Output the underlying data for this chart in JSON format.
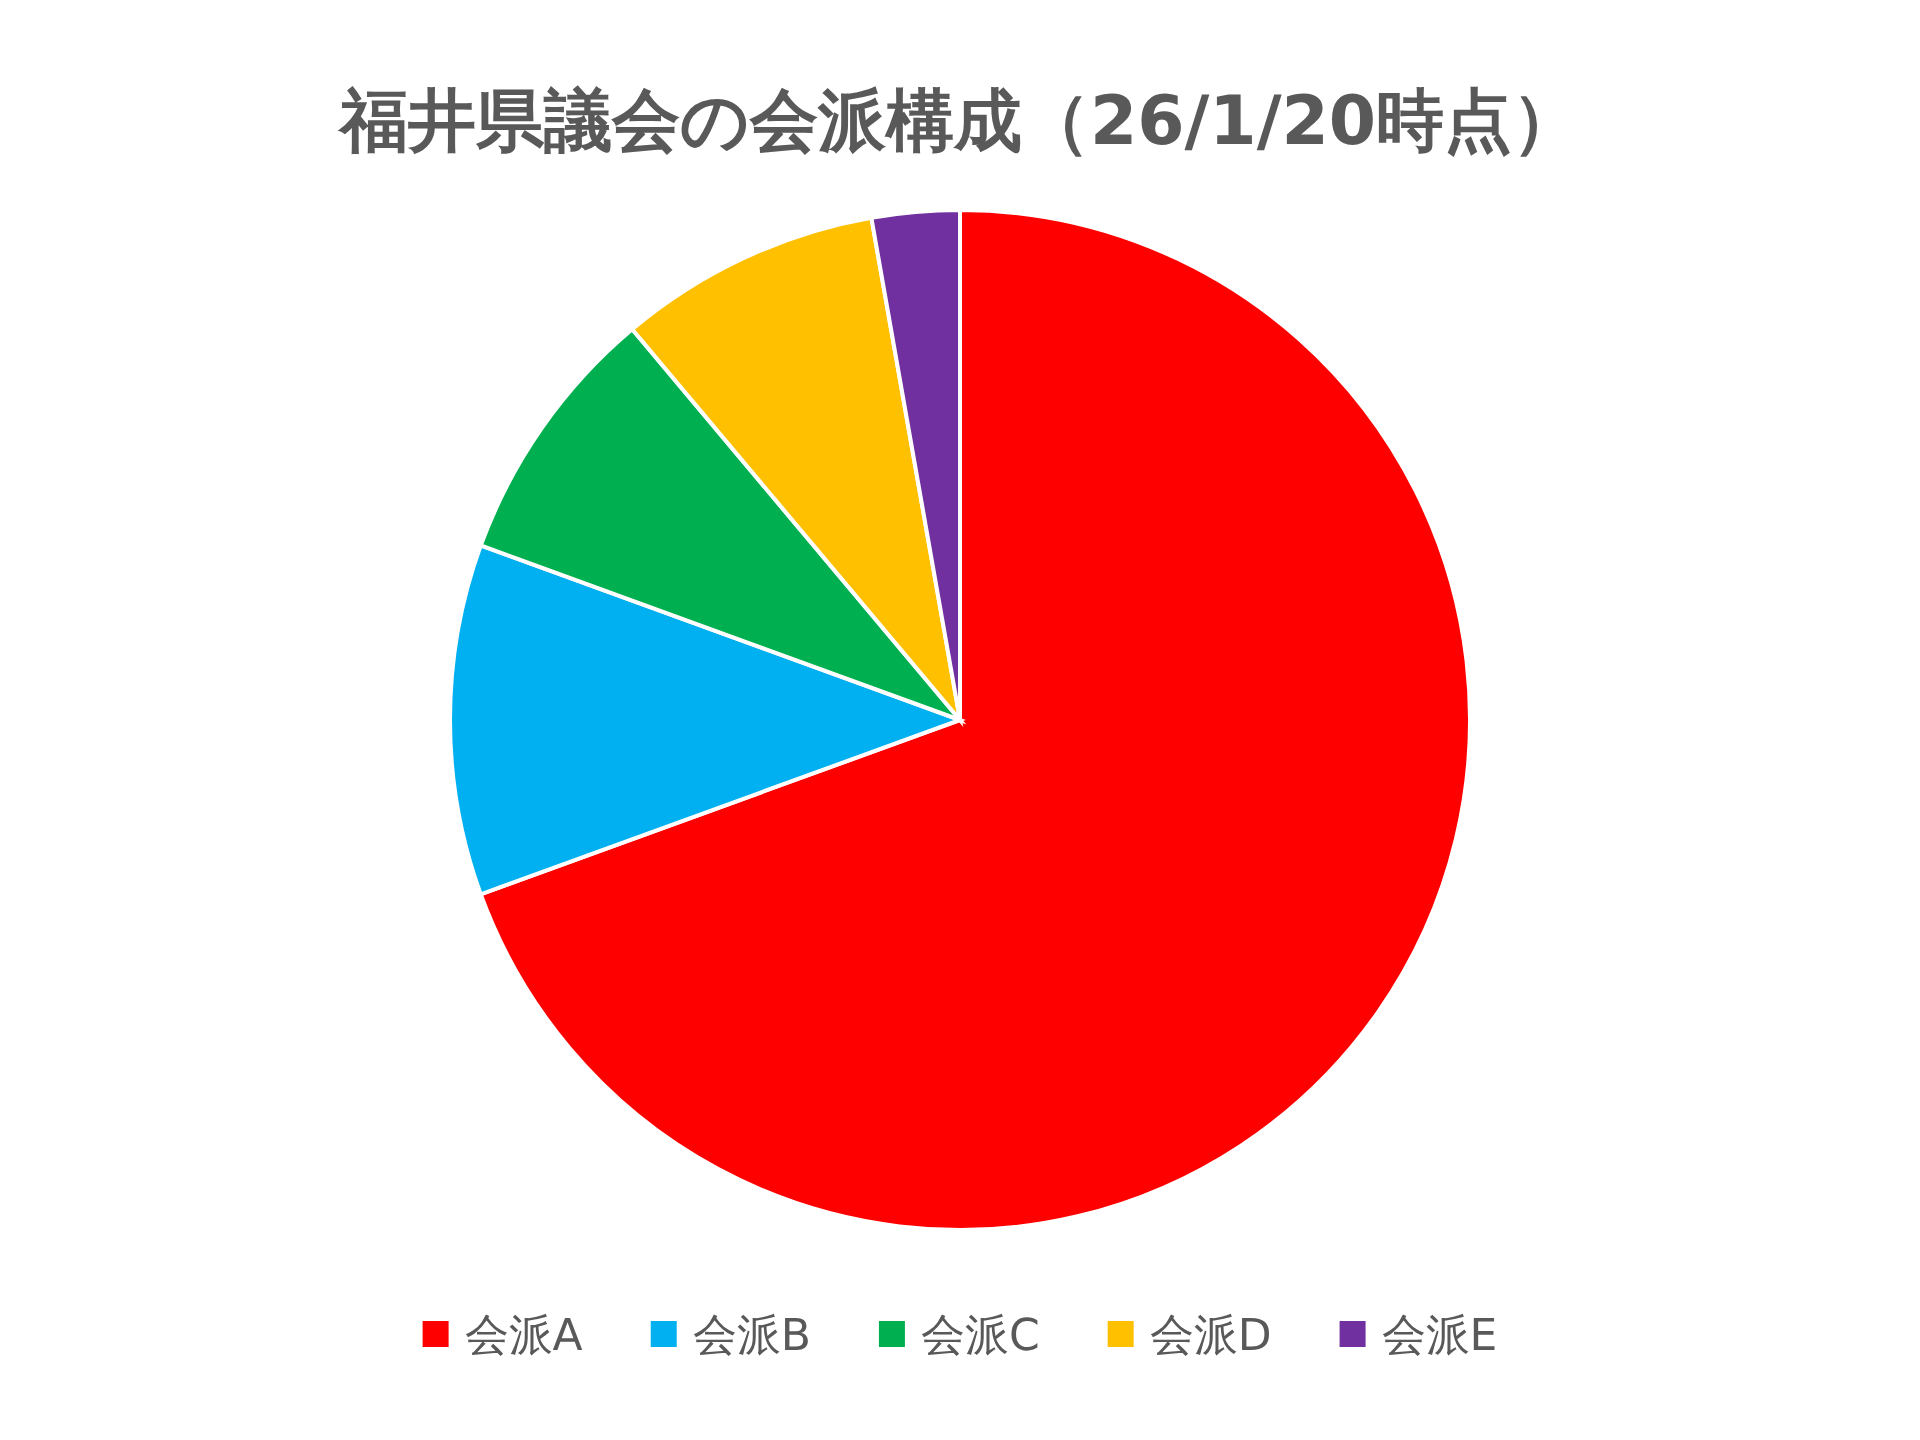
{
  "chart_data": {
    "type": "pie",
    "title": "福井県議会の会派構成（26/1/20時点）",
    "categories": [
      "会派A",
      "会派B",
      "会派C",
      "会派D",
      "会派E"
    ],
    "values": [
      69.45,
      11.11,
      8.33,
      8.33,
      2.78
    ],
    "colors": [
      "#ff0000",
      "#00b0f0",
      "#00b050",
      "#ffc000",
      "#7030a0"
    ],
    "legend": "bottom"
  }
}
